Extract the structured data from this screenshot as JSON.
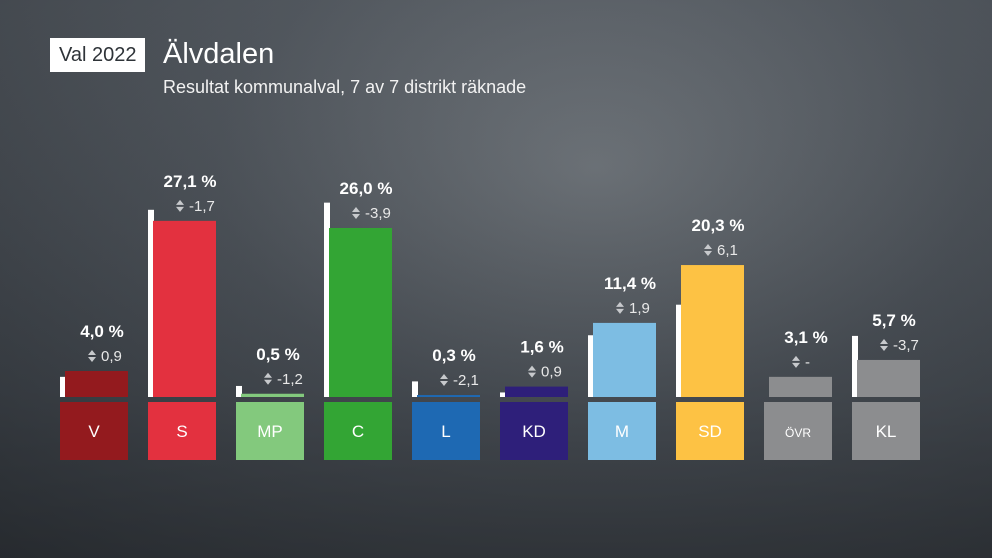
{
  "header": {
    "badge": "Val 2022",
    "title": "Älvdalen",
    "subtitle": "Resultat kommunalval, 7 av 7 distrikt räknade"
  },
  "colors": {
    "V": "#931a1e",
    "S": "#e3313f",
    "MP": "#83c97d",
    "C": "#33a534",
    "L": "#1e69b3",
    "KD": "#2e1f7a",
    "M": "#7dbde3",
    "SD": "#fdc244",
    "OVR": "#8c8d8f",
    "KL": "#8c8d8f",
    "previous_bar": "#ffffff"
  },
  "chart_data": {
    "type": "bar",
    "categories": [
      "V",
      "S",
      "MP",
      "C",
      "L",
      "KD",
      "M",
      "SD",
      "ÖVR",
      "KL"
    ],
    "series": [
      {
        "name": "",
        "values": [
          4.0,
          27.1,
          0.5,
          26.0,
          0.3,
          1.6,
          11.4,
          20.3,
          3.1,
          5.7
        ]
      },
      {
        "name": "",
        "values": [
          3.1,
          28.8,
          1.7,
          29.9,
          2.4,
          0.7,
          9.5,
          14.2,
          null,
          9.4
        ]
      }
    ],
    "labels": [
      "4,0 %",
      "27,1 %",
      "0,5 %",
      "26,0 %",
      "0,3 %",
      "1,6 %",
      "11,4 %",
      "20,3 %",
      "3,1 %",
      "5,7 %"
    ],
    "changes": [
      "0,9",
      "-1,7",
      "-1,2",
      "-3,9",
      "-2,1",
      "0,9",
      "1,9",
      "6,1",
      "-",
      "-3,7"
    ],
    "ylim": [
      0,
      30
    ],
    "grid": false,
    "legend": "none"
  }
}
